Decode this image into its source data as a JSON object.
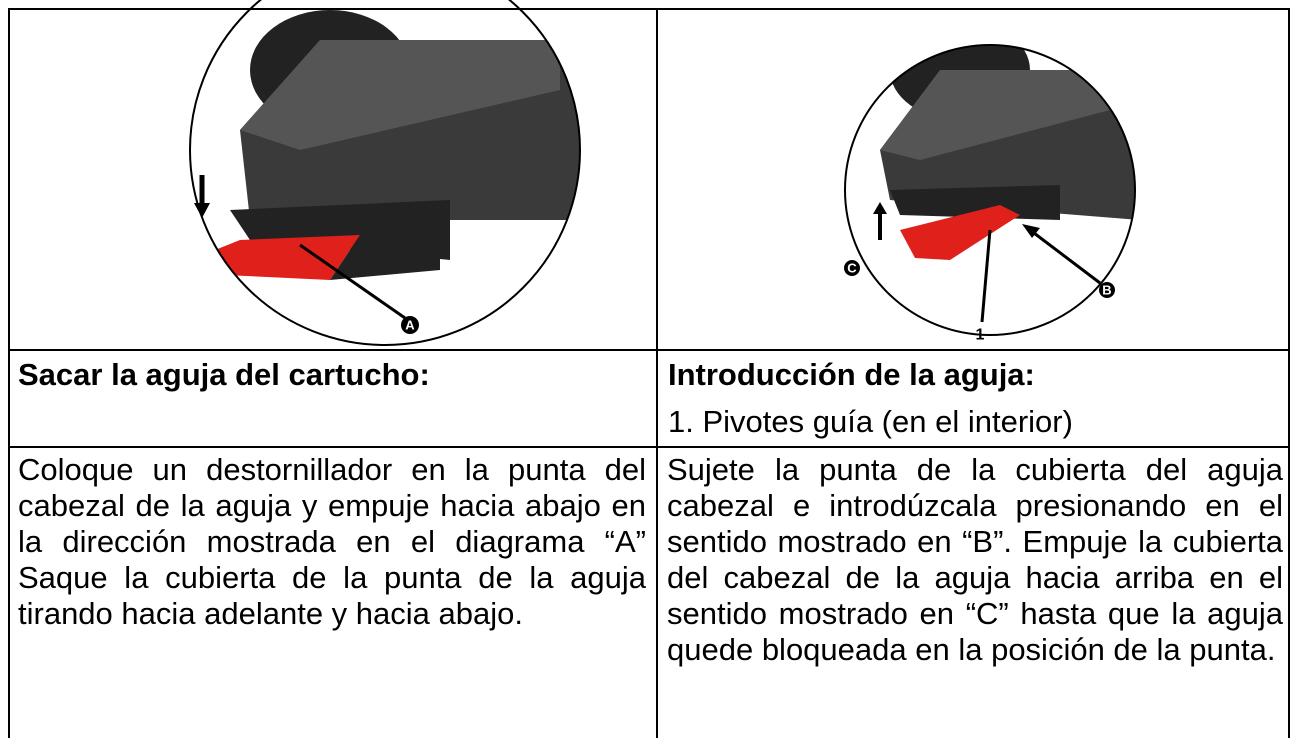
{
  "left": {
    "figure_label": "A",
    "heading": "Sacar la aguja del cartucho:",
    "body": "Coloque un destornillador en la punta del cabezal de la aguja y empuje hacia abajo en la dirección mostrada en el diagrama “A” Saque la cubierta de la punta de la aguja tirando hacia adelante y hacia abajo."
  },
  "right": {
    "figure_labels": [
      "C",
      "B",
      "1"
    ],
    "heading": "Introducción de la aguja:",
    "subheading": "1. Pivotes guía (en el interior)",
    "body": "Sujete la punta de la cubierta del aguja cabezal e introdúzcala presionando en el sentido mostrado en “B”. Empuje la cubierta del cabezal de la aguja hacia arriba en el sentido mostrado en “C” hasta que la aguja quede bloqueada en la posición de la punta."
  }
}
